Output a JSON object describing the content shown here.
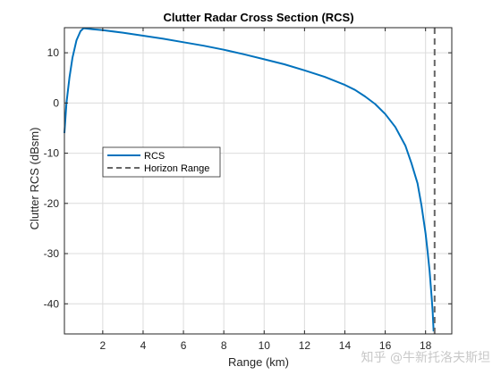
{
  "chart_data": {
    "type": "line",
    "title": "Clutter Radar Cross Section (RCS)",
    "xlabel": "Range (km)",
    "ylabel": "Clutter RCS (dBsm)",
    "xlim": [
      0.1,
      19.3
    ],
    "ylim": [
      -46,
      15
    ],
    "xticks": [
      2,
      4,
      6,
      8,
      10,
      12,
      14,
      16,
      18
    ],
    "yticks": [
      10,
      0,
      -10,
      -20,
      -30,
      -40
    ],
    "grid": true,
    "legend_position": "middle-left",
    "series": [
      {
        "name": "RCS",
        "color": "#0072BD",
        "style": "solid",
        "x": [
          0.1,
          0.2,
          0.35,
          0.5,
          0.7,
          0.9,
          1.05,
          1.5,
          2,
          3,
          4,
          5,
          6,
          7,
          8,
          9,
          10,
          11,
          12,
          13,
          14,
          14.5,
          15,
          15.5,
          16,
          16.5,
          17,
          17.3,
          17.6,
          17.8,
          18.0,
          18.1,
          18.2,
          18.3,
          18.35,
          18.4
        ],
        "y": [
          -6,
          0,
          5,
          9,
          12.5,
          14.3,
          14.9,
          14.7,
          14.5,
          14,
          13.4,
          12.8,
          12.1,
          11.4,
          10.6,
          9.7,
          8.7,
          7.7,
          6.5,
          5.2,
          3.6,
          2.6,
          1.3,
          -0.2,
          -2.2,
          -4.8,
          -8.5,
          -12,
          -16,
          -20.5,
          -26,
          -29.5,
          -33.5,
          -38.5,
          -41.5,
          -45.5
        ]
      },
      {
        "name": "Horizon Range",
        "color": "#666666",
        "style": "dashed",
        "x": [
          18.45,
          18.45
        ],
        "y": [
          -46,
          15
        ]
      }
    ]
  },
  "watermark": "知乎 @牛新托洛夫斯坦"
}
